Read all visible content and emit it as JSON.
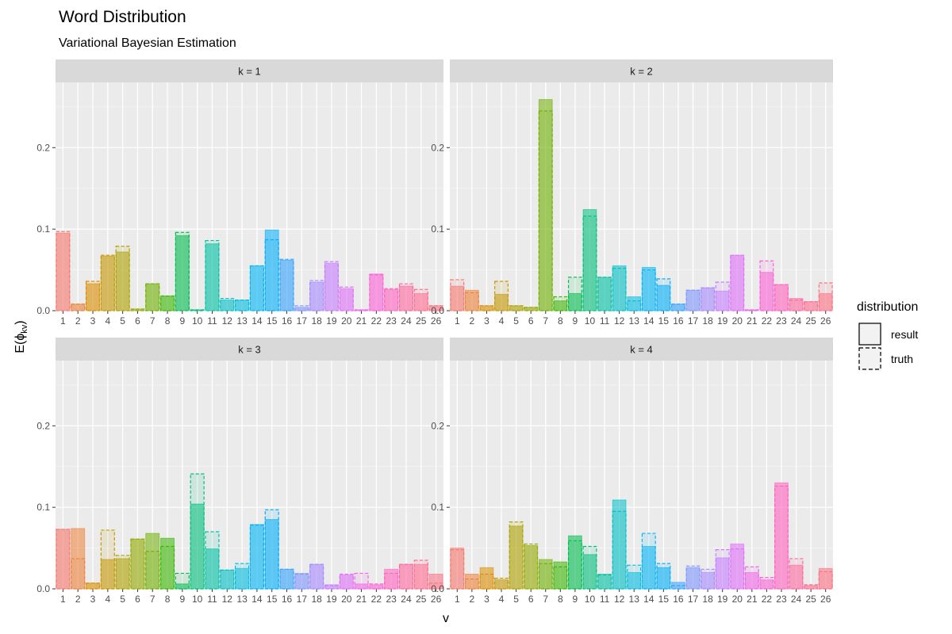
{
  "chart_data": {
    "type": "bar",
    "title": "Word Distribution",
    "subtitle": "Variational Bayesian Estimation",
    "xlabel": "v",
    "ylabel_main": "E(",
    "ylabel_greek": "ϕ",
    "ylabel_sub": "kv",
    "ylabel_close": ")",
    "ylim": [
      0,
      0.28
    ],
    "yticks": [
      0.0,
      0.1,
      0.2
    ],
    "ytick_labels": [
      "0.0",
      "0.1",
      "0.2"
    ],
    "grid": true,
    "legend": {
      "title": "distribution",
      "placement": "right",
      "entries": [
        {
          "label": "result",
          "linetype": "solid"
        },
        {
          "label": "truth",
          "linetype": "dashed"
        }
      ]
    },
    "categories": [
      "1",
      "2",
      "3",
      "4",
      "5",
      "6",
      "7",
      "8",
      "9",
      "10",
      "11",
      "12",
      "13",
      "14",
      "15",
      "16",
      "17",
      "18",
      "19",
      "20",
      "21",
      "22",
      "23",
      "24",
      "25",
      "26"
    ],
    "category_colors": [
      "#F8766D",
      "#EC8239",
      "#DB8E00",
      "#C79800",
      "#AFA100",
      "#93AA00",
      "#6FB000",
      "#39B600",
      "#00BB4E",
      "#00BF7D",
      "#00C1A3",
      "#00C0C6",
      "#00BCE0",
      "#00B6F5",
      "#00AEFA",
      "#35A2FF",
      "#7F96FF",
      "#A58AFF",
      "#C77CFF",
      "#DF70F8",
      "#F066EA",
      "#FB61D7",
      "#FF63BF",
      "#FF689F",
      "#FF6C90",
      "#FB7082"
    ],
    "facets": [
      {
        "label": "k = 1",
        "result": [
          0.095,
          0.008,
          0.033,
          0.067,
          0.072,
          0.002,
          0.033,
          0.018,
          0.092,
          0.001,
          0.082,
          0.013,
          0.013,
          0.055,
          0.099,
          0.062,
          0.004,
          0.035,
          0.058,
          0.027,
          0.001,
          0.045,
          0.026,
          0.03,
          0.021,
          0.006
        ],
        "truth": [
          0.097,
          0.008,
          0.036,
          0.068,
          0.079,
          0.002,
          0.033,
          0.018,
          0.096,
          0.001,
          0.086,
          0.015,
          0.013,
          0.055,
          0.087,
          0.063,
          0.006,
          0.037,
          0.06,
          0.029,
          0.001,
          0.044,
          0.027,
          0.033,
          0.026,
          0.006
        ]
      },
      {
        "label": "k = 2",
        "result": [
          0.03,
          0.025,
          0.006,
          0.02,
          0.006,
          0.004,
          0.259,
          0.012,
          0.021,
          0.124,
          0.041,
          0.055,
          0.017,
          0.053,
          0.031,
          0.008,
          0.025,
          0.028,
          0.024,
          0.068,
          0.001,
          0.047,
          0.032,
          0.015,
          0.011,
          0.021
        ],
        "truth": [
          0.038,
          0.022,
          0.006,
          0.036,
          0.006,
          0.004,
          0.245,
          0.017,
          0.041,
          0.116,
          0.041,
          0.052,
          0.012,
          0.05,
          0.039,
          0.008,
          0.025,
          0.028,
          0.035,
          0.068,
          0.001,
          0.061,
          0.032,
          0.013,
          0.011,
          0.034
        ]
      },
      {
        "label": "k = 3",
        "result": [
          0.073,
          0.074,
          0.007,
          0.036,
          0.037,
          0.061,
          0.068,
          0.062,
          0.006,
          0.104,
          0.049,
          0.023,
          0.025,
          0.079,
          0.085,
          0.024,
          0.019,
          0.03,
          0.005,
          0.017,
          0.006,
          0.005,
          0.024,
          0.03,
          0.03,
          0.018
        ],
        "truth": [
          0.073,
          0.037,
          0.007,
          0.072,
          0.041,
          0.061,
          0.046,
          0.052,
          0.019,
          0.141,
          0.07,
          0.023,
          0.031,
          0.078,
          0.097,
          0.024,
          0.018,
          0.03,
          0.004,
          0.018,
          0.019,
          0.006,
          0.019,
          0.03,
          0.035,
          0.007
        ]
      },
      {
        "label": "k = 4",
        "result": [
          0.05,
          0.018,
          0.026,
          0.011,
          0.077,
          0.053,
          0.036,
          0.033,
          0.065,
          0.042,
          0.018,
          0.109,
          0.02,
          0.052,
          0.026,
          0.008,
          0.026,
          0.02,
          0.038,
          0.055,
          0.02,
          0.011,
          0.13,
          0.029,
          0.004,
          0.025
        ],
        "truth": [
          0.048,
          0.012,
          0.018,
          0.013,
          0.082,
          0.055,
          0.031,
          0.027,
          0.059,
          0.052,
          0.017,
          0.095,
          0.029,
          0.068,
          0.031,
          0.004,
          0.028,
          0.024,
          0.048,
          0.049,
          0.027,
          0.014,
          0.126,
          0.037,
          0.005,
          0.021
        ]
      }
    ]
  }
}
